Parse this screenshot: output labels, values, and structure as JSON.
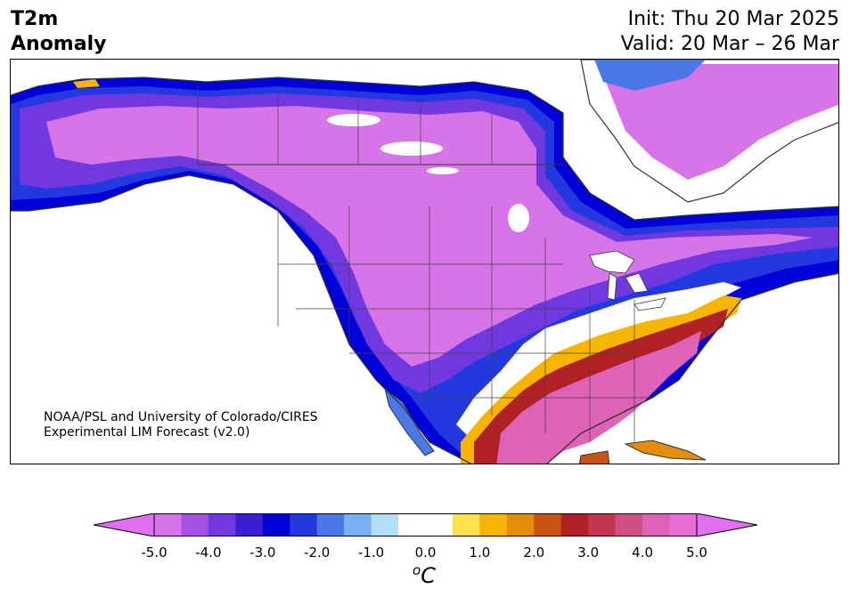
{
  "header": {
    "title_line1": "T2m",
    "title_line2": "Anomaly",
    "init": "Init: Thu 20 Mar 2025",
    "valid": "Valid: 20 Mar – 26 Mar"
  },
  "credit": {
    "line1": "NOAA/PSL and University of Colorado/CIRES",
    "line2": "Experimental LIM Forecast (v2.0)"
  },
  "colorbar": {
    "ticks": [
      "-5.0",
      "-4.0",
      "-3.0",
      "-2.0",
      "-1.0",
      "0.0",
      "1.0",
      "2.0",
      "3.0",
      "4.0",
      "5.0"
    ],
    "unit_base": "C",
    "unit_sup": "o",
    "colors": [
      "#d674e8",
      "#a452e3",
      "#7038de",
      "#3b1ed3",
      "#0000d8",
      "#2438e0",
      "#4a78e8",
      "#78b2f4",
      "#b2defa",
      "#ffffff",
      "#ffffff",
      "#ffe14d",
      "#f7b400",
      "#e48c0c",
      "#c95412",
      "#b02025",
      "#c33552",
      "#d04f86",
      "#de62b5",
      "#e86dd6"
    ],
    "under_color": "#e070f0",
    "over_color": "#e070f0"
  },
  "map": {
    "colors": {
      "cold_strong": "#d674e8",
      "cold_mid": "#7038de",
      "cold_blue": "#0000d8",
      "cold_light": "#78b2f4",
      "neutral": "#ffffff",
      "warm_yellow": "#f7b400",
      "warm_red": "#b02025",
      "warm_pink": "#de62b5",
      "coast": "#333333"
    }
  }
}
